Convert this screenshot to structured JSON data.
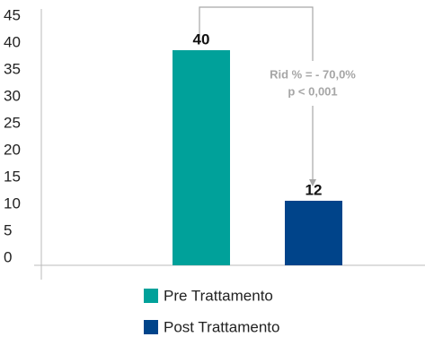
{
  "chart_data": {
    "type": "bar",
    "categories": [
      null
    ],
    "series": [
      {
        "name": "Pre Trattamento",
        "color": "#00a19a",
        "values": [
          40
        ]
      },
      {
        "name": "Post Trattamento",
        "color": "#00448a",
        "values": [
          12
        ]
      }
    ],
    "ylim": [
      0,
      45
    ],
    "yticks": [
      0,
      5,
      10,
      15,
      20,
      25,
      30,
      35,
      40,
      45
    ],
    "annotation": [
      "Rid % = - 70,0%",
      "p < 0,001"
    ]
  }
}
